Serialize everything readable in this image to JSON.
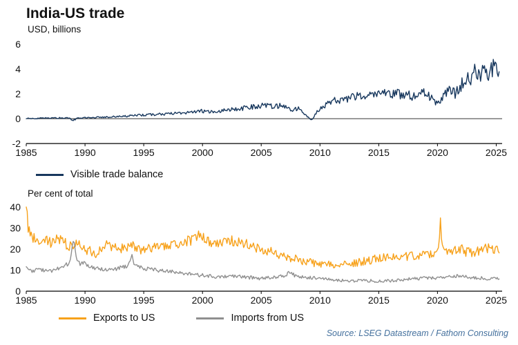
{
  "title": "India-US trade",
  "source": "Source: LSEG Datastream / Fathom Consulting",
  "colors": {
    "balance": "#17375d",
    "exports": "#f7a11a",
    "imports": "#8f8f8f",
    "axis": "#000000",
    "zero_line": "#333333",
    "source_text": "#44709d"
  },
  "chart_data": [
    {
      "type": "line",
      "title": "India-US trade",
      "ylabel": "USD, billions",
      "xlabel": "",
      "x_range": [
        1985,
        2025.5
      ],
      "ylim": [
        -2,
        6
      ],
      "yticks": [
        -2,
        0,
        2,
        4,
        6
      ],
      "xticks": [
        1985,
        1990,
        1995,
        2000,
        2005,
        2010,
        2015,
        2020,
        2025
      ],
      "grid": false,
      "zero_line": true,
      "legend_position": "below-left",
      "legend": [
        {
          "label": "Visible trade balance",
          "color_key": "balance"
        }
      ],
      "series": [
        {
          "name": "Visible trade balance",
          "color_key": "balance",
          "noise_base": 0.04,
          "noise_scale": 0.18,
          "keypoints": [
            [
              1985,
              0.02
            ],
            [
              1986,
              0.03
            ],
            [
              1987,
              0.05
            ],
            [
              1988,
              0.06
            ],
            [
              1988.7,
              0.05
            ],
            [
              1988.95,
              -0.2
            ],
            [
              1989.3,
              0.02
            ],
            [
              1990,
              0.08
            ],
            [
              1991,
              0.1
            ],
            [
              1992,
              0.14
            ],
            [
              1993,
              0.18
            ],
            [
              1994,
              0.24
            ],
            [
              1995,
              0.3
            ],
            [
              1996,
              0.34
            ],
            [
              1997,
              0.4
            ],
            [
              1998,
              0.42
            ],
            [
              1999,
              0.5
            ],
            [
              2000,
              0.62
            ],
            [
              2001,
              0.55
            ],
            [
              2002,
              0.68
            ],
            [
              2003,
              0.78
            ],
            [
              2004,
              0.9
            ],
            [
              2005,
              1.05
            ],
            [
              2006,
              1.0
            ],
            [
              2007,
              1.05
            ],
            [
              2007.7,
              0.55
            ],
            [
              2008.2,
              1.0
            ],
            [
              2008.8,
              0.3
            ],
            [
              2009.3,
              -0.1
            ],
            [
              2009.7,
              0.5
            ],
            [
              2010.3,
              0.95
            ],
            [
              2011,
              1.4
            ],
            [
              2012,
              1.55
            ],
            [
              2013,
              1.75
            ],
            [
              2014,
              1.8
            ],
            [
              2015,
              1.95
            ],
            [
              2016,
              2.0
            ],
            [
              2017,
              1.95
            ],
            [
              2018,
              1.8
            ],
            [
              2019,
              2.05
            ],
            [
              2020.2,
              1.1
            ],
            [
              2020.6,
              2.1
            ],
            [
              2021,
              2.3
            ],
            [
              2021.5,
              2.0
            ],
            [
              2022,
              2.7
            ],
            [
              2022.4,
              3.3
            ],
            [
              2022.8,
              2.9
            ],
            [
              2023.2,
              3.9
            ],
            [
              2023.6,
              3.3
            ],
            [
              2024,
              4.1
            ],
            [
              2024.4,
              3.6
            ],
            [
              2024.8,
              4.4
            ],
            [
              2025.1,
              3.9
            ],
            [
              2025.3,
              4.6
            ]
          ]
        }
      ]
    },
    {
      "type": "line",
      "title": "",
      "ylabel": "Per cent of total",
      "xlabel": "",
      "x_range": [
        1985,
        2025.5
      ],
      "ylim": [
        0,
        40
      ],
      "yticks": [
        0,
        10,
        20,
        30,
        40
      ],
      "xticks": [
        1985,
        1990,
        1995,
        2000,
        2005,
        2010,
        2015,
        2020,
        2025
      ],
      "grid": false,
      "zero_line": false,
      "legend_position": "below-left",
      "legend": [
        {
          "label": "Exports to US",
          "color_key": "exports"
        },
        {
          "label": "Imports from US",
          "color_key": "imports"
        }
      ],
      "series": [
        {
          "name": "Exports to US",
          "color_key": "exports",
          "noise_base": 1.0,
          "noise_scale": 0.07,
          "keypoints": [
            [
              1985,
              39.5
            ],
            [
              1985.15,
              31
            ],
            [
              1985.5,
              26
            ],
            [
              1986,
              24
            ],
            [
              1986.5,
              26
            ],
            [
              1987,
              23
            ],
            [
              1988,
              25
            ],
            [
              1988.5,
              22
            ],
            [
              1989,
              21
            ],
            [
              1989.5,
              23
            ],
            [
              1990,
              20
            ],
            [
              1991,
              18
            ],
            [
              1991.5,
              21
            ],
            [
              1992,
              22
            ],
            [
              1993,
              20
            ],
            [
              1994,
              21.5
            ],
            [
              1995,
              19.5
            ],
            [
              1996,
              20.5
            ],
            [
              1997,
              21
            ],
            [
              1998,
              22.5
            ],
            [
              1999,
              24
            ],
            [
              1999.5,
              26.5
            ],
            [
              2000,
              25.5
            ],
            [
              2000.5,
              24
            ],
            [
              2001,
              23
            ],
            [
              2002,
              24
            ],
            [
              2003,
              23.5
            ],
            [
              2004,
              22
            ],
            [
              2005,
              20
            ],
            [
              2006,
              18.5
            ],
            [
              2007,
              16.5
            ],
            [
              2008,
              15
            ],
            [
              2009,
              14
            ],
            [
              2010,
              13
            ],
            [
              2011,
              12.5
            ],
            [
              2012,
              13.5
            ],
            [
              2013,
              13.5
            ],
            [
              2014,
              14.5
            ],
            [
              2015,
              15.5
            ],
            [
              2016,
              16
            ],
            [
              2017,
              16.5
            ],
            [
              2018,
              16.5
            ],
            [
              2019,
              17.5
            ],
            [
              2020.1,
              18.5
            ],
            [
              2020.25,
              33
            ],
            [
              2020.45,
              18.5
            ],
            [
              2021,
              19
            ],
            [
              2022,
              20
            ],
            [
              2022.5,
              18.5
            ],
            [
              2023,
              18.5
            ],
            [
              2024,
              20
            ],
            [
              2025.3,
              20.5
            ]
          ]
        },
        {
          "name": "Imports from US",
          "color_key": "imports",
          "noise_base": 0.5,
          "noise_scale": 0.05,
          "keypoints": [
            [
              1985,
              11
            ],
            [
              1985.5,
              9.5
            ],
            [
              1986,
              10
            ],
            [
              1987,
              9.5
            ],
            [
              1988,
              11.5
            ],
            [
              1988.7,
              13
            ],
            [
              1989.05,
              24.5
            ],
            [
              1989.35,
              13.5
            ],
            [
              1990,
              13
            ],
            [
              1990.5,
              11.5
            ],
            [
              1991,
              11
            ],
            [
              1992,
              10
            ],
            [
              1993,
              11
            ],
            [
              1993.7,
              12
            ],
            [
              1993.95,
              17.5
            ],
            [
              1994.25,
              12.5
            ],
            [
              1995,
              11
            ],
            [
              1996,
              10
            ],
            [
              1997,
              9.5
            ],
            [
              1998,
              9
            ],
            [
              1999,
              8
            ],
            [
              2000,
              7.5
            ],
            [
              2001,
              7
            ],
            [
              2002,
              6.8
            ],
            [
              2003,
              7
            ],
            [
              2004,
              6.5
            ],
            [
              2005,
              6
            ],
            [
              2006,
              6.5
            ],
            [
              2007,
              7.5
            ],
            [
              2007.4,
              9
            ],
            [
              2008,
              7
            ],
            [
              2009,
              6.5
            ],
            [
              2010,
              6
            ],
            [
              2011,
              5.5
            ],
            [
              2012,
              5.2
            ],
            [
              2013,
              5
            ],
            [
              2014,
              5
            ],
            [
              2015,
              4.8
            ],
            [
              2016,
              5
            ],
            [
              2017,
              5.5
            ],
            [
              2018,
              6
            ],
            [
              2019,
              6.2
            ],
            [
              2020,
              6
            ],
            [
              2021,
              7
            ],
            [
              2022,
              7.2
            ],
            [
              2023,
              6.5
            ],
            [
              2024,
              6.2
            ],
            [
              2025.3,
              5.8
            ]
          ]
        }
      ]
    }
  ]
}
